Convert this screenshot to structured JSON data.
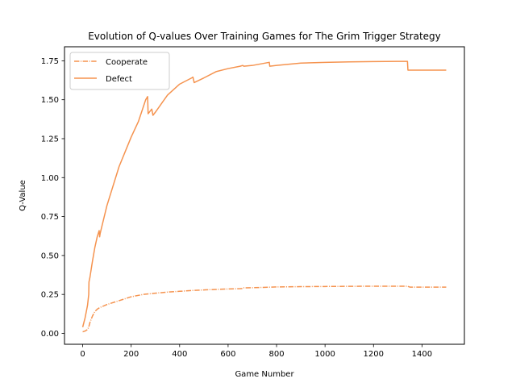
{
  "chart_data": {
    "type": "line",
    "title": "Evolution of Q-values Over Training Games for The Grim Trigger Strategy",
    "xlabel": "Game Number",
    "ylabel": "Q-Value",
    "xlim": [
      -75,
      1575
    ],
    "ylim": [
      -0.07,
      1.84
    ],
    "xticks": [
      0,
      200,
      400,
      600,
      800,
      1000,
      1200,
      1400
    ],
    "yticks": [
      0.0,
      0.25,
      0.5,
      0.75,
      1.0,
      1.25,
      1.5,
      1.75
    ],
    "xtick_labels": [
      "0",
      "200",
      "400",
      "600",
      "800",
      "1000",
      "1200",
      "1400"
    ],
    "ytick_labels": [
      "0.00",
      "0.25",
      "0.50",
      "0.75",
      "1.00",
      "1.25",
      "1.50",
      "1.75"
    ],
    "grid": false,
    "legend_position": "top-left",
    "series": [
      {
        "name": "Cooperate",
        "color": "#f5934f",
        "style": "dashdot",
        "x": [
          0,
          10,
          20,
          25,
          30,
          40,
          50,
          60,
          70,
          100,
          150,
          200,
          250,
          300,
          350,
          400,
          450,
          500,
          550,
          600,
          650,
          660,
          665,
          700,
          800,
          900,
          1000,
          1100,
          1200,
          1300,
          1340,
          1345,
          1350,
          1400,
          1500
        ],
        "values": [
          0.01,
          0.015,
          0.025,
          0.04,
          0.07,
          0.11,
          0.14,
          0.155,
          0.165,
          0.185,
          0.21,
          0.235,
          0.25,
          0.258,
          0.265,
          0.27,
          0.275,
          0.279,
          0.282,
          0.285,
          0.287,
          0.288,
          0.292,
          0.293,
          0.298,
          0.3,
          0.301,
          0.302,
          0.303,
          0.303,
          0.303,
          0.3,
          0.297,
          0.297,
          0.297
        ]
      },
      {
        "name": "Defect",
        "color": "#f5934f",
        "style": "solid",
        "x": [
          0,
          10,
          20,
          25,
          26,
          30,
          40,
          50,
          60,
          68,
          70,
          72,
          75,
          100,
          150,
          200,
          230,
          260,
          268,
          270,
          280,
          285,
          290,
          300,
          350,
          400,
          450,
          455,
          460,
          500,
          550,
          600,
          650,
          660,
          665,
          700,
          770,
          772,
          800,
          900,
          1000,
          1100,
          1200,
          1300,
          1340,
          1342,
          1350,
          1400,
          1500
        ],
        "values": [
          0.04,
          0.1,
          0.18,
          0.25,
          0.33,
          0.36,
          0.46,
          0.55,
          0.62,
          0.66,
          0.62,
          0.64,
          0.66,
          0.82,
          1.07,
          1.26,
          1.36,
          1.5,
          1.52,
          1.41,
          1.43,
          1.44,
          1.4,
          1.42,
          1.53,
          1.6,
          1.64,
          1.645,
          1.61,
          1.64,
          1.68,
          1.7,
          1.715,
          1.72,
          1.715,
          1.72,
          1.74,
          1.715,
          1.72,
          1.735,
          1.74,
          1.743,
          1.745,
          1.746,
          1.746,
          1.69,
          1.69,
          1.69,
          1.69
        ]
      }
    ]
  }
}
